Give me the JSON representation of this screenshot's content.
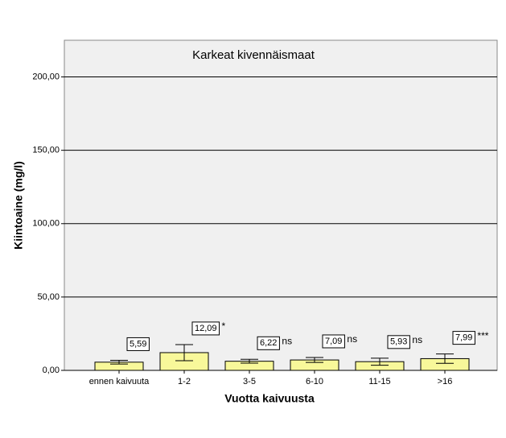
{
  "chart_data": {
    "type": "bar",
    "title": "Karkeat kivennäismaat",
    "x_label": "Vuotta kaivuusta",
    "y_label": "Kiintoaine (mg/l)",
    "categories": [
      "ennen kaivuuta",
      "1-2",
      "3-5",
      "6-10",
      "11-15",
      ">16"
    ],
    "values": [
      5.59,
      12.09,
      6.22,
      7.09,
      5.93,
      7.99
    ],
    "value_labels": [
      "5,59",
      "12,09",
      "6,22",
      "7,09",
      "5,93",
      "7,99"
    ],
    "errors": [
      1.3,
      5.5,
      1.3,
      1.7,
      2.4,
      3.2
    ],
    "significance": [
      null,
      "*",
      "ns",
      "ns",
      "ns",
      "***"
    ],
    "color": "#f8f89a",
    "ylim": [
      0,
      225
    ],
    "yticks": [
      {
        "value": 0,
        "label": "0,00"
      },
      {
        "value": 50,
        "label": "50,00"
      },
      {
        "value": 100,
        "label": "100,00"
      },
      {
        "value": 150,
        "label": "150,00"
      },
      {
        "value": 200,
        "label": "200,00"
      }
    ],
    "grid": true
  }
}
